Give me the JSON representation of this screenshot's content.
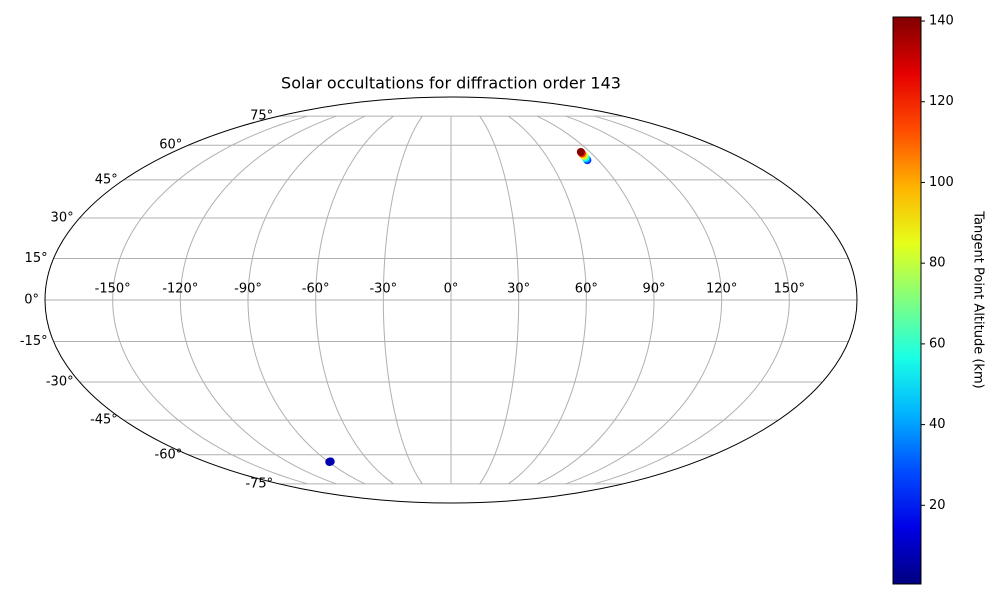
{
  "chart_data": {
    "type": "scatter",
    "projection": "mollweide",
    "title": "Solar occultations for diffraction order 143",
    "colorbar_label": "Tangent Point Altitude (km)",
    "colormap": "jet",
    "grid": true,
    "x": [
      83.4,
      83.5,
      83.6,
      83.6,
      83.7,
      83.8,
      83.9,
      84.0,
      84.1,
      -89.5,
      -89.2,
      -88.9,
      -88.6,
      -88.3,
      -88.0
    ],
    "y": [
      53.3,
      53.6,
      54.0,
      54.4,
      54.9,
      55.4,
      55.9,
      56.4,
      56.9,
      -63.4,
      -63.4,
      -63.3,
      -63.3,
      -63.2,
      -63.2
    ],
    "c": [
      20,
      30,
      40,
      55,
      70,
      85,
      100,
      120,
      140,
      1,
      2,
      3,
      4,
      6,
      8
    ],
    "clim": [
      0.5,
      141
    ],
    "cticks": [
      20,
      40,
      60,
      80,
      100,
      120,
      140
    ],
    "xticks": [
      {
        "value": -150,
        "label": "-150°"
      },
      {
        "value": -120,
        "label": "-120°"
      },
      {
        "value": -90,
        "label": "-90°"
      },
      {
        "value": -60,
        "label": "-60°"
      },
      {
        "value": -30,
        "label": "-30°"
      },
      {
        "value": 0,
        "label": "0°"
      },
      {
        "value": 30,
        "label": "30°"
      },
      {
        "value": 60,
        "label": "60°"
      },
      {
        "value": 90,
        "label": "90°"
      },
      {
        "value": 120,
        "label": "120°"
      },
      {
        "value": 150,
        "label": "150°"
      }
    ],
    "yticks": [
      {
        "value": -75,
        "label": "-75°"
      },
      {
        "value": -60,
        "label": "-60°"
      },
      {
        "value": -45,
        "label": "-45°"
      },
      {
        "value": -30,
        "label": "-30°"
      },
      {
        "value": -15,
        "label": "-15°"
      },
      {
        "value": 0,
        "label": "0°"
      },
      {
        "value": 15,
        "label": "15°"
      },
      {
        "value": 30,
        "label": "30°"
      },
      {
        "value": 45,
        "label": "45°"
      },
      {
        "value": 60,
        "label": "60°"
      },
      {
        "value": 75,
        "label": "75°"
      }
    ]
  }
}
